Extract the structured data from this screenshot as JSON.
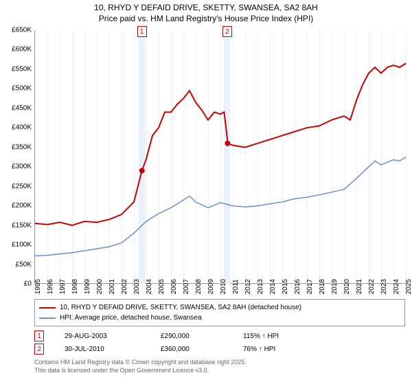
{
  "title": {
    "line1": "10, RHYD Y DEFAID DRIVE, SKETTY, SWANSEA, SA2 8AH",
    "line2": "Price paid vs. HM Land Registry's House Price Index (HPI)"
  },
  "chart": {
    "type": "line",
    "background_color": "#ffffff",
    "grid_color": "#eeeeee",
    "axis_color": "#999999",
    "x": {
      "min": 1995,
      "max": 2025,
      "ticks": [
        1995,
        1996,
        1997,
        1998,
        1999,
        2000,
        2001,
        2002,
        2003,
        2004,
        2005,
        2006,
        2007,
        2008,
        2009,
        2010,
        2011,
        2012,
        2013,
        2014,
        2015,
        2016,
        2017,
        2018,
        2019,
        2020,
        2021,
        2022,
        2023,
        2024,
        2025
      ]
    },
    "y": {
      "min": 0,
      "max": 650000,
      "ticks": [
        0,
        50000,
        100000,
        150000,
        200000,
        250000,
        300000,
        350000,
        400000,
        450000,
        500000,
        550000,
        600000,
        650000
      ],
      "labels": [
        "£0",
        "£50K",
        "£100K",
        "£150K",
        "£200K",
        "£250K",
        "£300K",
        "£350K",
        "£400K",
        "£450K",
        "£500K",
        "£550K",
        "£600K",
        "£650K"
      ]
    },
    "shaded_bands": [
      {
        "start": 2003.4,
        "end": 2003.9,
        "label": "1"
      },
      {
        "start": 2010.3,
        "end": 2010.8,
        "label": "2"
      }
    ],
    "series": [
      {
        "id": "subject",
        "color": "#cc0000",
        "width": 2,
        "points": [
          [
            1995,
            155000
          ],
          [
            1996,
            152000
          ],
          [
            1997,
            158000
          ],
          [
            1998,
            150000
          ],
          [
            1999,
            160000
          ],
          [
            2000,
            158000
          ],
          [
            2001,
            165000
          ],
          [
            2002,
            178000
          ],
          [
            2003,
            210000
          ],
          [
            2003.65,
            290000
          ],
          [
            2004,
            320000
          ],
          [
            2004.5,
            380000
          ],
          [
            2005,
            400000
          ],
          [
            2005.5,
            440000
          ],
          [
            2006,
            440000
          ],
          [
            2006.5,
            460000
          ],
          [
            2007,
            475000
          ],
          [
            2007.5,
            495000
          ],
          [
            2008,
            465000
          ],
          [
            2008.5,
            445000
          ],
          [
            2009,
            420000
          ],
          [
            2009.5,
            440000
          ],
          [
            2010,
            435000
          ],
          [
            2010.3,
            440000
          ],
          [
            2010.6,
            360000
          ],
          [
            2011,
            355000
          ],
          [
            2012,
            350000
          ],
          [
            2013,
            360000
          ],
          [
            2014,
            370000
          ],
          [
            2015,
            380000
          ],
          [
            2016,
            390000
          ],
          [
            2017,
            400000
          ],
          [
            2018,
            405000
          ],
          [
            2019,
            420000
          ],
          [
            2020,
            430000
          ],
          [
            2020.5,
            420000
          ],
          [
            2021,
            470000
          ],
          [
            2021.5,
            510000
          ],
          [
            2022,
            540000
          ],
          [
            2022.5,
            555000
          ],
          [
            2023,
            540000
          ],
          [
            2023.5,
            555000
          ],
          [
            2024,
            560000
          ],
          [
            2024.5,
            555000
          ],
          [
            2025,
            565000
          ]
        ]
      },
      {
        "id": "hpi",
        "color": "#6d8fcb",
        "width": 1.5,
        "points": [
          [
            1995,
            72000
          ],
          [
            1996,
            73000
          ],
          [
            1997,
            77000
          ],
          [
            1998,
            80000
          ],
          [
            1999,
            85000
          ],
          [
            2000,
            90000
          ],
          [
            2001,
            95000
          ],
          [
            2002,
            105000
          ],
          [
            2003,
            130000
          ],
          [
            2004,
            160000
          ],
          [
            2005,
            180000
          ],
          [
            2006,
            195000
          ],
          [
            2007,
            215000
          ],
          [
            2007.5,
            225000
          ],
          [
            2008,
            210000
          ],
          [
            2009,
            195000
          ],
          [
            2010,
            208000
          ],
          [
            2011,
            200000
          ],
          [
            2012,
            197000
          ],
          [
            2013,
            200000
          ],
          [
            2014,
            205000
          ],
          [
            2015,
            210000
          ],
          [
            2016,
            218000
          ],
          [
            2017,
            222000
          ],
          [
            2018,
            228000
          ],
          [
            2019,
            235000
          ],
          [
            2020,
            242000
          ],
          [
            2021,
            270000
          ],
          [
            2022,
            300000
          ],
          [
            2022.5,
            315000
          ],
          [
            2023,
            305000
          ],
          [
            2024,
            318000
          ],
          [
            2024.5,
            315000
          ],
          [
            2025,
            325000
          ]
        ]
      }
    ],
    "markers": [
      {
        "x": 2003.65,
        "y": 290000,
        "color": "#cc0000",
        "r": 4
      },
      {
        "x": 2010.58,
        "y": 360000,
        "color": "#cc0000",
        "r": 4
      }
    ]
  },
  "legend": {
    "items": [
      {
        "color": "#cc0000",
        "label": "10, RHYD Y DEFAID DRIVE, SKETTY, SWANSEA, SA2 8AH (detached house)"
      },
      {
        "color": "#6d8fcb",
        "label": "HPI: Average price, detached house, Swansea"
      }
    ]
  },
  "events": [
    {
      "idx": "1",
      "date": "29-AUG-2003",
      "price": "£290,000",
      "pct": "115% ↑ HPI"
    },
    {
      "idx": "2",
      "date": "30-JUL-2010",
      "price": "£360,000",
      "pct": "76% ↑ HPI"
    }
  ],
  "attribution": {
    "line1": "Contains HM Land Registry data © Crown copyright and database right 2025.",
    "line2": "This data is licensed under the Open Government Licence v3.0."
  }
}
